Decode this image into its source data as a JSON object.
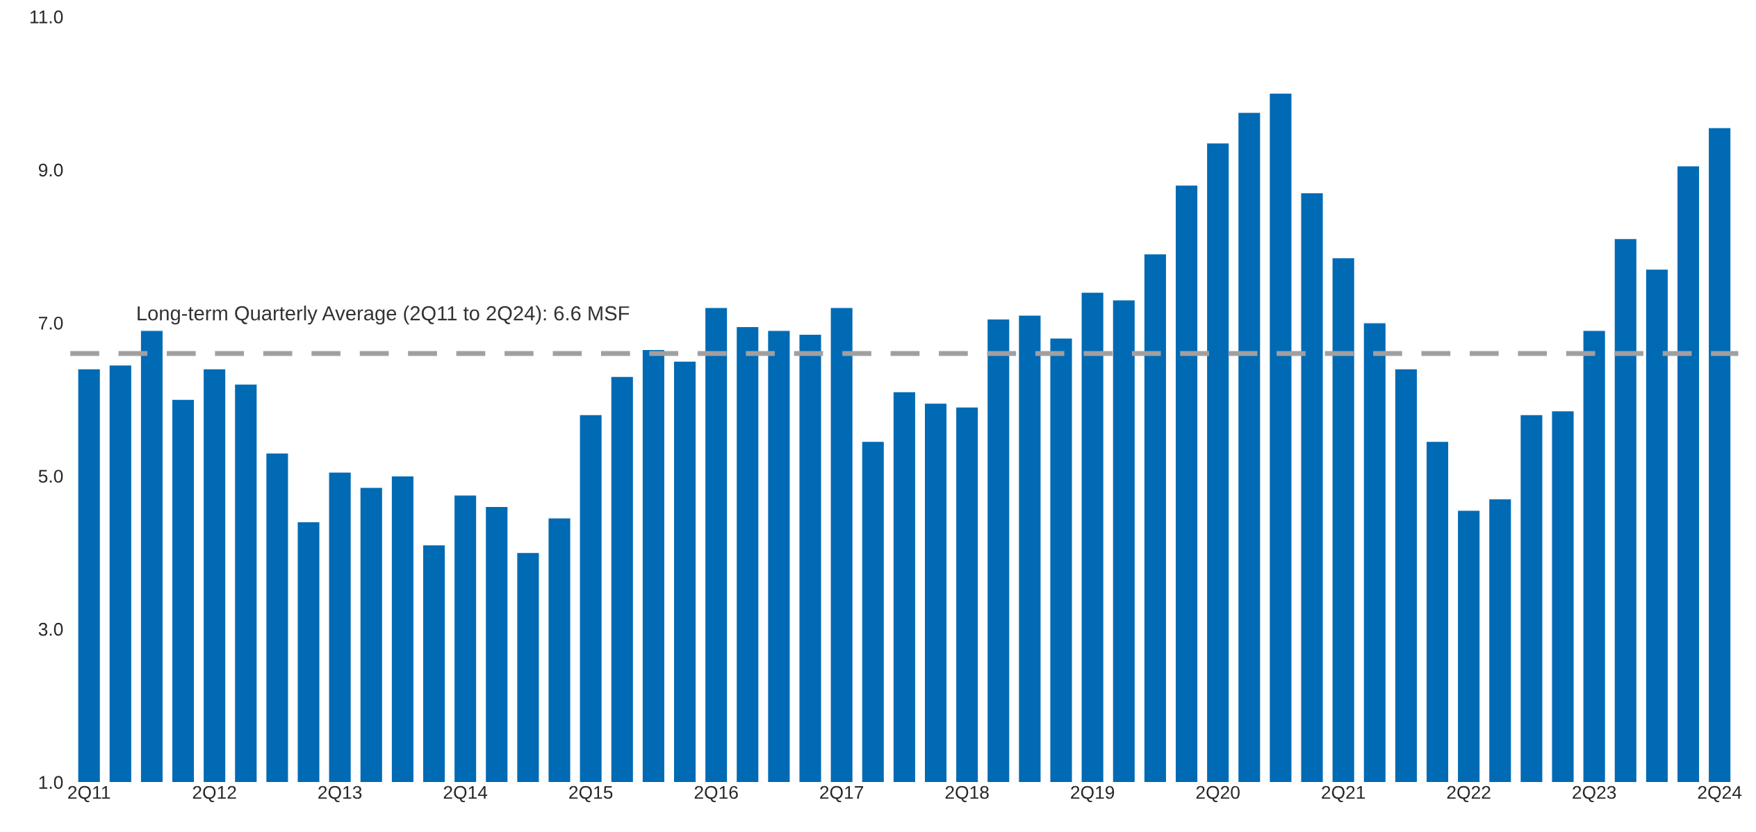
{
  "chart_data": {
    "type": "bar",
    "categories": [
      "2Q11",
      null,
      null,
      null,
      "2Q12",
      null,
      null,
      null,
      "2Q13",
      null,
      null,
      null,
      "2Q14",
      null,
      null,
      null,
      "2Q15",
      null,
      null,
      null,
      "2Q16",
      null,
      null,
      null,
      "2Q17",
      null,
      null,
      null,
      "2Q18",
      null,
      null,
      null,
      "2Q19",
      null,
      null,
      null,
      "2Q20",
      null,
      null,
      null,
      "2Q21",
      null,
      null,
      null,
      "2Q22",
      null,
      null,
      null,
      "2Q23",
      null,
      null,
      null,
      "2Q24"
    ],
    "values": [
      6.4,
      6.45,
      6.9,
      6.0,
      6.4,
      6.2,
      5.3,
      4.4,
      5.05,
      4.85,
      5.0,
      4.1,
      4.75,
      4.6,
      4.0,
      4.45,
      5.8,
      6.3,
      6.65,
      6.5,
      7.2,
      6.95,
      6.9,
      6.85,
      7.2,
      5.45,
      6.1,
      5.95,
      5.9,
      7.05,
      7.1,
      6.8,
      7.4,
      7.3,
      7.9,
      8.8,
      9.35,
      9.75,
      10.0,
      8.7,
      7.85,
      7.0,
      6.4,
      5.45,
      4.55,
      4.7,
      5.8,
      5.85,
      6.9,
      8.1,
      7.7,
      9.05,
      9.55
    ],
    "color": "#006ab4",
    "ylim": [
      1.0,
      11.0
    ],
    "yticks": [
      {
        "value": 1,
        "label": "1.0"
      },
      {
        "value": 3,
        "label": "3.0"
      },
      {
        "value": 5,
        "label": "5.0"
      },
      {
        "value": 7,
        "label": "7.0"
      },
      {
        "value": 9,
        "label": "9.0"
      },
      {
        "value": 11,
        "label": "11.0"
      }
    ],
    "ref_lines": [
      {
        "axis": "y",
        "value": 6.6,
        "label": "Long-term Quarterly Average (2Q11 to 2Q24): 6.6 MSF",
        "color": "#a0a0a0",
        "line_style": "dashed"
      }
    ],
    "grid": false,
    "legend": false
  }
}
